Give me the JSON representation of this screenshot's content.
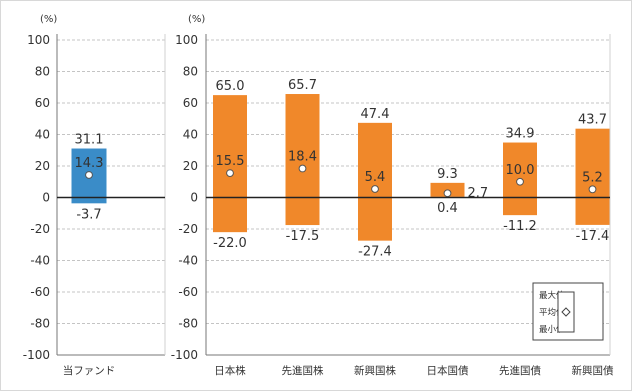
{
  "chart_data": [
    {
      "type": "bar",
      "subtype": "range-with-average",
      "unit_label": "(%)",
      "ylim": [
        -100,
        100
      ],
      "yticks": [
        100,
        80,
        60,
        40,
        20,
        0,
        -20,
        -40,
        -60,
        -80,
        -100
      ],
      "grid": true,
      "categories": [
        "当ファンド"
      ],
      "series": [
        {
          "max": [
            31.1
          ],
          "avg": [
            14.3
          ],
          "min": [
            -3.7
          ]
        }
      ],
      "colors": {
        "bar": "#3a8cc8"
      }
    },
    {
      "type": "bar",
      "subtype": "range-with-average",
      "unit_label": "(%)",
      "ylim": [
        -100,
        100
      ],
      "yticks": [
        100,
        80,
        60,
        40,
        20,
        0,
        -20,
        -40,
        -60,
        -80,
        -100
      ],
      "grid": true,
      "categories": [
        "日本株",
        "先進国株",
        "新興国株",
        "日本国債",
        "先進国債",
        "新興国債"
      ],
      "series": [
        {
          "max": [
            65.0,
            65.7,
            47.4,
            9.3,
            34.9,
            43.7
          ],
          "avg": [
            15.5,
            18.4,
            5.4,
            2.7,
            10.0,
            5.2
          ],
          "min": [
            -22.0,
            -17.5,
            -27.4,
            0.4,
            -11.2,
            -17.4
          ]
        }
      ],
      "colors": {
        "bar": "#f0882a"
      },
      "legend": {
        "position": "bottom-right",
        "labels": [
          "最大値",
          "平均値",
          "最小値"
        ]
      }
    }
  ]
}
